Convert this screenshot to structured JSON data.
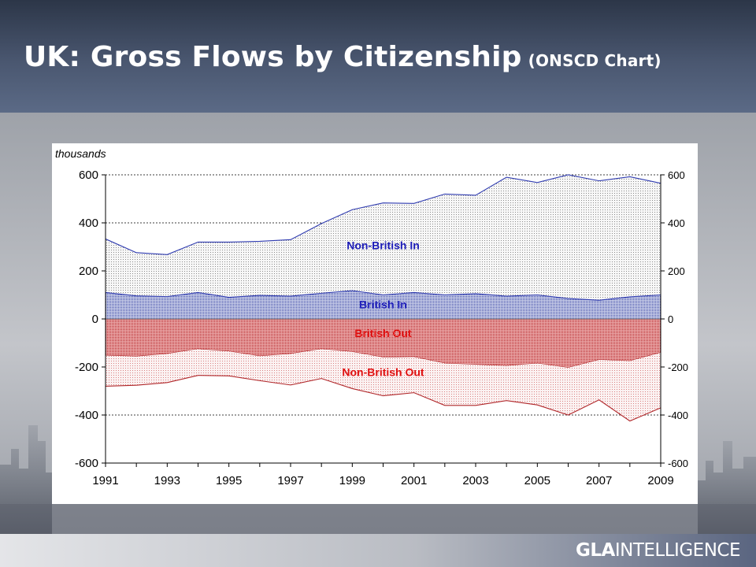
{
  "header": {
    "title": "UK: Gross Flows by Citizenship",
    "subtitle": "(ONSCD Chart)"
  },
  "footer": {
    "brand_bold": "GLA",
    "brand_light": "INTELLIGENCE"
  },
  "colors": {
    "inflow_line": "#2f3bb0",
    "outflow_line": "#b0272a",
    "non_british_in_label": "#1c1cb8",
    "british_in_label": "#1c1cb8",
    "british_out_label": "#e01010",
    "non_british_out_label": "#e01010"
  },
  "chart_data": {
    "type": "area",
    "unit_label": "thousands",
    "x": [
      1991,
      1992,
      1993,
      1994,
      1995,
      1996,
      1997,
      1998,
      1999,
      2000,
      2001,
      2002,
      2003,
      2004,
      2005,
      2006,
      2007,
      2008,
      2009
    ],
    "x_tick_labels": [
      "1991",
      "1993",
      "1995",
      "1997",
      "1999",
      "2001",
      "2003",
      "2005",
      "2007",
      "2009"
    ],
    "ylim": [
      -600,
      600
    ],
    "y_ticks_left": [
      "600",
      "400",
      "200",
      "0",
      "-200",
      "-400",
      "-600"
    ],
    "y_ticks_right": [
      "600",
      "400",
      "200",
      "0",
      "-200",
      "-400",
      "-600"
    ],
    "grid": "horizontal dashed",
    "series": [
      {
        "name": "Non-British In",
        "upper": [
          333,
          276,
          268,
          320,
          320,
          323,
          330,
          397,
          455,
          483,
          481,
          520,
          515,
          590,
          568,
          600,
          575,
          592,
          565
        ],
        "lower": [
          110,
          96,
          93,
          110,
          90,
          98,
          95,
          107,
          118,
          100,
          110,
          100,
          105,
          95,
          100,
          85,
          78,
          92,
          100
        ]
      },
      {
        "name": "British In",
        "upper": [
          110,
          96,
          93,
          110,
          90,
          98,
          95,
          107,
          118,
          100,
          110,
          100,
          105,
          95,
          100,
          85,
          78,
          92,
          100
        ],
        "lower": [
          0,
          0,
          0,
          0,
          0,
          0,
          0,
          0,
          0,
          0,
          0,
          0,
          0,
          0,
          0,
          0,
          0,
          0,
          0
        ]
      },
      {
        "name": "British Out",
        "upper": [
          0,
          0,
          0,
          0,
          0,
          0,
          0,
          0,
          0,
          0,
          0,
          0,
          0,
          0,
          0,
          0,
          0,
          0,
          0
        ],
        "lower": [
          -152,
          -156,
          -145,
          -125,
          -135,
          -155,
          -145,
          -125,
          -137,
          -160,
          -158,
          -185,
          -190,
          -195,
          -185,
          -203,
          -170,
          -175,
          -140
        ]
      },
      {
        "name": "Non-British Out",
        "upper": [
          -152,
          -156,
          -145,
          -125,
          -135,
          -155,
          -145,
          -125,
          -137,
          -160,
          -158,
          -185,
          -190,
          -195,
          -185,
          -203,
          -170,
          -175,
          -140
        ],
        "lower": [
          -280,
          -276,
          -265,
          -235,
          -237,
          -257,
          -275,
          -248,
          -290,
          -320,
          -307,
          -360,
          -360,
          -340,
          -358,
          -400,
          -337,
          -425,
          -370
        ]
      }
    ]
  }
}
